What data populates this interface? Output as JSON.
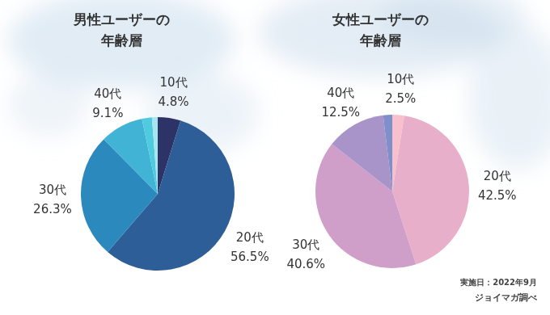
{
  "chart_data": [
    {
      "type": "pie",
      "title": "男性ユーザーの\n年齢層",
      "categories": [
        "10代",
        "20代",
        "30代",
        "40代",
        null,
        null
      ],
      "values": [
        4.8,
        56.5,
        26.3,
        9.1,
        2.1,
        1.2
      ],
      "value_labels": [
        "4.8%",
        "56.5%",
        "26.3%",
        "9.1%",
        null,
        null
      ],
      "colors": [
        "#2d3366",
        "#2e5e98",
        "#2b89bd",
        "#41b4d6",
        "#4fcadf",
        "#a6e6ee"
      ],
      "data_labels": true
    },
    {
      "type": "pie",
      "title": "女性ユーザーの\n年齢層",
      "categories": [
        "10代",
        "20代",
        "30代",
        "40代",
        null
      ],
      "values": [
        2.5,
        42.5,
        40.6,
        12.5,
        1.9
      ],
      "value_labels": [
        "2.5%",
        "42.5%",
        "40.6%",
        "12.5%",
        null
      ],
      "colors": [
        "#f8c0cd",
        "#e8afcb",
        "#cf9ec9",
        "#a894c8",
        "#7e8fc9"
      ],
      "data_labels": true
    }
  ],
  "source": [
    "実施日：2022年9月",
    "ジョイマガ調べ"
  ]
}
